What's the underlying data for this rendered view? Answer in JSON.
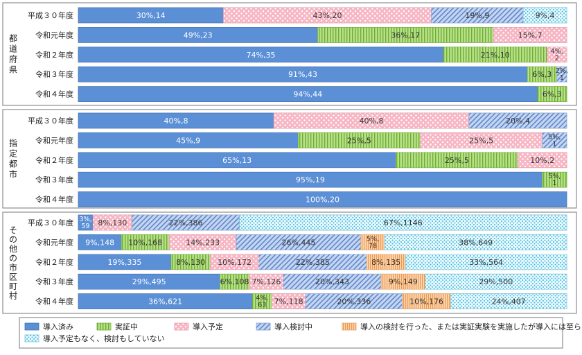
{
  "chart_data": {
    "type": "bar",
    "orientation": "horizontal",
    "stacked": "percent",
    "xlim": [
      0,
      100
    ],
    "legend_position": "bottom",
    "series": [
      {
        "name": "導入済み",
        "color": "#5b8fd6",
        "pattern": "solid"
      },
      {
        "name": "実証中",
        "color": "#9ed36a",
        "pattern": "vlines"
      },
      {
        "name": "導入予定",
        "color": "#f7b5c3",
        "pattern": "dots"
      },
      {
        "name": "導入検討中",
        "color": "#b9cdef",
        "pattern": "diag"
      },
      {
        "name": "導入の検討を行った、または実証実験を実施したが導入には至らなかった",
        "color": "#f8c79b",
        "pattern": "vstripes"
      },
      {
        "name": "導入予定もなく、検討もしていない",
        "color": "#c7eef6",
        "pattern": "cyandots"
      }
    ],
    "groups": [
      {
        "label": "都道府県",
        "rows": [
          {
            "label": "平成３０年度",
            "values": [
              30,
              0,
              43,
              19,
              0,
              9
            ],
            "counts": [
              14,
              0,
              20,
              9,
              0,
              4
            ]
          },
          {
            "label": "令和元年度",
            "values": [
              49,
              36,
              15,
              0,
              0,
              0
            ],
            "counts": [
              23,
              17,
              7,
              0,
              0,
              0
            ]
          },
          {
            "label": "令和２年度",
            "values": [
              74,
              21,
              4,
              0,
              0,
              0
            ],
            "counts": [
              35,
              10,
              2,
              0,
              0,
              0
            ]
          },
          {
            "label": "令和３年度",
            "values": [
              91,
              6,
              0,
              2,
              0,
              0
            ],
            "counts": [
              43,
              3,
              0,
              1,
              0,
              0
            ]
          },
          {
            "label": "令和４年度",
            "values": [
              94,
              6,
              0,
              0,
              0,
              0
            ],
            "counts": [
              44,
              3,
              0,
              0,
              0,
              0
            ]
          }
        ]
      },
      {
        "label": "指定都市",
        "rows": [
          {
            "label": "平成３０年度",
            "values": [
              40,
              0,
              40,
              20,
              0,
              0
            ],
            "counts": [
              8,
              0,
              8,
              4,
              0,
              0
            ]
          },
          {
            "label": "令和元年度",
            "values": [
              45,
              25,
              25,
              5,
              0,
              0
            ],
            "counts": [
              9,
              5,
              5,
              1,
              0,
              0
            ]
          },
          {
            "label": "令和２年度",
            "values": [
              65,
              25,
              10,
              0,
              0,
              0
            ],
            "counts": [
              13,
              5,
              2,
              0,
              0,
              0
            ]
          },
          {
            "label": "令和３年度",
            "values": [
              95,
              5,
              0,
              0,
              0,
              0
            ],
            "counts": [
              19,
              1,
              0,
              0,
              0,
              0
            ]
          },
          {
            "label": "令和４年度",
            "values": [
              100,
              0,
              0,
              0,
              0,
              0
            ],
            "counts": [
              20,
              0,
              0,
              0,
              0,
              0
            ]
          }
        ]
      },
      {
        "label": "その他の市区町村",
        "rows": [
          {
            "label": "平成３０年度",
            "values": [
              3,
              0,
              8,
              22,
              0,
              67
            ],
            "counts": [
              59,
              0,
              130,
              386,
              0,
              1146
            ]
          },
          {
            "label": "令和元年度",
            "values": [
              9,
              10,
              14,
              26,
              5,
              38
            ],
            "counts": [
              148,
              168,
              233,
              445,
              78,
              649
            ]
          },
          {
            "label": "令和２年度",
            "values": [
              19,
              8,
              10,
              22,
              8,
              33
            ],
            "counts": [
              335,
              130,
              172,
              385,
              135,
              564
            ]
          },
          {
            "label": "令和３年度",
            "values": [
              29,
              6,
              7,
              20,
              9,
              29
            ],
            "counts": [
              495,
              108,
              126,
              343,
              149,
              500
            ]
          },
          {
            "label": "令和４年度",
            "values": [
              36,
              4,
              7,
              20,
              10,
              24
            ],
            "counts": [
              621,
              63,
              118,
              336,
              176,
              407
            ]
          }
        ]
      }
    ]
  }
}
